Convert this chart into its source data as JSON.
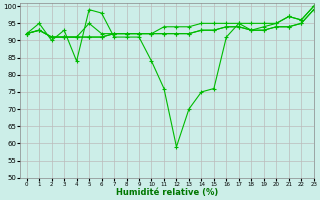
{
  "xlabel": "Humidité relative (%)",
  "background_color": "#cceee8",
  "grid_color": "#bbbbbb",
  "line_color": "#00bb00",
  "xlim": [
    -0.5,
    23
  ],
  "ylim": [
    50,
    101
  ],
  "yticks": [
    50,
    55,
    60,
    65,
    70,
    75,
    80,
    85,
    90,
    95,
    100
  ],
  "xticks": [
    0,
    1,
    2,
    3,
    4,
    5,
    6,
    7,
    8,
    9,
    10,
    11,
    12,
    13,
    14,
    15,
    16,
    17,
    18,
    19,
    20,
    21,
    22,
    23
  ],
  "series": [
    [
      92,
      95,
      90,
      93,
      84,
      99,
      98,
      91,
      91,
      91,
      84,
      76,
      59,
      70,
      75,
      76,
      91,
      95,
      93,
      94,
      95,
      97,
      96,
      100
    ],
    [
      92,
      93,
      91,
      91,
      91,
      95,
      92,
      92,
      92,
      92,
      92,
      92,
      92,
      92,
      93,
      93,
      94,
      94,
      93,
      93,
      94,
      94,
      95,
      99
    ],
    [
      92,
      93,
      91,
      91,
      91,
      91,
      91,
      92,
      92,
      92,
      92,
      92,
      92,
      92,
      93,
      93,
      94,
      94,
      93,
      93,
      94,
      94,
      95,
      99
    ],
    [
      92,
      93,
      91,
      91,
      91,
      91,
      91,
      92,
      92,
      92,
      92,
      94,
      94,
      94,
      95,
      95,
      95,
      95,
      95,
      95,
      95,
      97,
      96,
      100
    ]
  ]
}
